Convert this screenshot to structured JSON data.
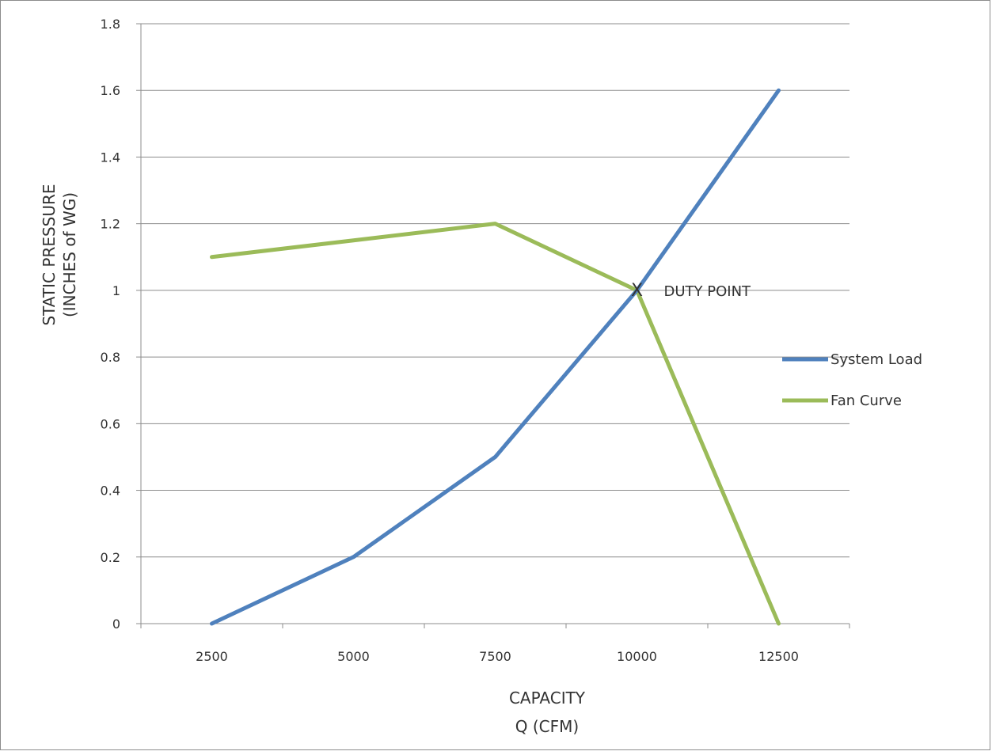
{
  "chart_data": {
    "type": "line",
    "categories": [
      "2500",
      "5000",
      "7500",
      "10000",
      "12500"
    ],
    "series": [
      {
        "name": "System Load",
        "values": [
          0,
          0.2,
          0.5,
          1.0,
          1.6
        ],
        "color": "#4f81bd"
      },
      {
        "name": "Fan Curve",
        "values": [
          1.1,
          1.15,
          1.2,
          1.0,
          0
        ],
        "color": "#9bbb59"
      }
    ],
    "xlabel_lines": [
      "CAPACITY",
      "Q (CFM)"
    ],
    "ylabel_lines": [
      "STATIC PRESSURE",
      "(INCHES  of WG)"
    ],
    "ylim": [
      0,
      1.8
    ],
    "y_ticks": [
      "0",
      "0.2",
      "0.4",
      "0.6",
      "0.8",
      "1",
      "1.2",
      "1.4",
      "1.6",
      "1.8"
    ],
    "grid": "horizontal",
    "legend_position": "right",
    "annotation": {
      "marker": "X",
      "text": "DUTY POINT",
      "category": "10000",
      "value": 1.0
    }
  }
}
